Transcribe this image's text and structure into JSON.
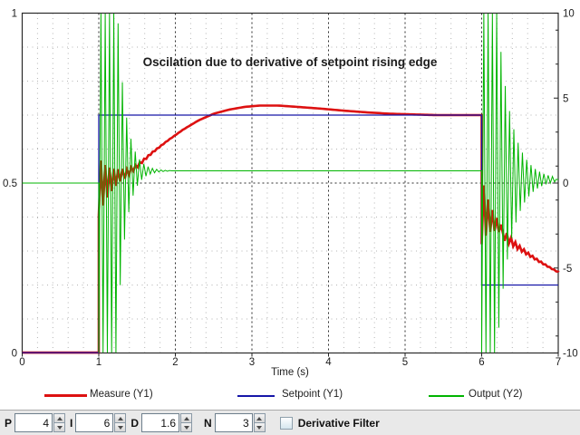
{
  "chart_data": {
    "type": "line",
    "title": "Oscilation due to derivative of setpoint rising edge",
    "xlabel": "Time (s)",
    "x_range": [
      0,
      7
    ],
    "x_ticks": [
      0,
      1,
      2,
      3,
      4,
      5,
      6,
      7
    ],
    "y_left": {
      "range": [
        0,
        1
      ],
      "ticks": [
        0,
        0.5,
        1
      ],
      "tick_labels": [
        "0",
        "0.5",
        "1"
      ]
    },
    "y_right": {
      "range": [
        -10,
        10
      ],
      "ticks": [
        -10,
        -5,
        0,
        5,
        10
      ],
      "tick_labels": [
        "-10",
        "-5",
        "0",
        "5",
        "10"
      ],
      "minor_ticks": [
        -9,
        -7,
        -3,
        -1,
        1,
        3,
        7,
        9
      ]
    },
    "grid": {
      "x_minor_step": 0.2,
      "y_left_minor_step": 0.1,
      "dark_x_lines": [
        1,
        2,
        3,
        4,
        5,
        6
      ],
      "dark_y_left_line": 0.5,
      "light_color": "#b3b3b3",
      "dark_color": "#2e2e2e"
    },
    "legend_position": "bottom",
    "series": [
      {
        "name": "Measure (Y1)",
        "axis": "left",
        "color": "#dd1111",
        "width": 2.6,
        "segments": [
          {
            "type": "flat",
            "t0": 0,
            "t1": 1,
            "v": 0
          },
          {
            "type": "burst",
            "t0": 1,
            "t1": 1.34,
            "center0": 0.49,
            "center1": 0.53,
            "rise": 0.34,
            "amp0": 0.085,
            "amp1": 0.085,
            "full_until": 1,
            "decay": 0.18,
            "halfperiod": 0.028
          },
          {
            "type": "smooth",
            "ripple_amp": 0.012,
            "ripple_decay": 0.2,
            "halfperiod": 0.028,
            "points": [
              [
                1.34,
                0.525
              ],
              [
                1.5,
                0.55
              ],
              [
                1.7,
                0.59
              ],
              [
                1.9,
                0.625
              ],
              [
                2.1,
                0.657
              ],
              [
                2.3,
                0.684
              ],
              [
                2.5,
                0.704
              ],
              [
                2.7,
                0.716
              ],
              [
                2.9,
                0.724
              ],
              [
                3.1,
                0.728
              ],
              [
                3.35,
                0.728
              ],
              [
                3.6,
                0.724
              ],
              [
                3.9,
                0.719
              ],
              [
                4.2,
                0.713
              ],
              [
                4.5,
                0.708
              ],
              [
                4.8,
                0.704
              ],
              [
                5.1,
                0.702
              ],
              [
                5.4,
                0.7
              ],
              [
                6,
                0.7
              ]
            ]
          },
          {
            "type": "burst",
            "t0": 6,
            "t1": 6.3,
            "center0": 0.42,
            "center1": 0.355,
            "rise": 0.3,
            "amp0": 0.1,
            "amp1": 0.1,
            "full_until": 6,
            "decay": 0.12,
            "halfperiod": 0.028
          },
          {
            "type": "smooth",
            "ripple_amp": 0.015,
            "ripple_decay": 0.25,
            "halfperiod": 0.028,
            "points": [
              [
                6.3,
                0.345
              ],
              [
                6.45,
                0.316
              ],
              [
                6.6,
                0.292
              ],
              [
                6.75,
                0.27
              ],
              [
                6.9,
                0.25
              ],
              [
                7,
                0.238
              ]
            ]
          }
        ]
      },
      {
        "name": "Setpoint (Y1)",
        "axis": "left",
        "color": "#1616a8",
        "width": 1.3,
        "segments": [
          {
            "type": "points",
            "points": [
              [
                0,
                0
              ],
              [
                1,
                0
              ],
              [
                1,
                0.7
              ],
              [
                6,
                0.7
              ],
              [
                6,
                0.2
              ],
              [
                7,
                0.2
              ]
            ]
          }
        ]
      },
      {
        "name": "Output (Y2)",
        "axis": "right",
        "color": "#00b400",
        "width": 1,
        "segments": [
          {
            "type": "flat",
            "t0": 0,
            "t1": 1,
            "v": 0
          },
          {
            "type": "burst",
            "t0": 1,
            "t1": 1.95,
            "center0": 0,
            "center1": 0.72,
            "rise": 0.25,
            "amp0": 26,
            "amp1": 10.6,
            "full_until": 1.23,
            "decay": 0.11,
            "halfperiod": 0.028
          },
          {
            "type": "flat",
            "t0": 1.95,
            "t1": 6,
            "v": 0.72
          },
          {
            "type": "burst",
            "t0": 6,
            "t1": 6.97,
            "center0": 0.72,
            "center1": 0.21,
            "rise": 0.25,
            "amp0": 26,
            "amp1": 10.6,
            "full_until": 6.19,
            "decay": 0.18,
            "halfperiod": 0.028
          },
          {
            "type": "flat",
            "t0": 6.97,
            "t1": 7,
            "v": 0.21
          }
        ]
      }
    ]
  },
  "legend": {
    "items": [
      "Measure (Y1)",
      "Setpoint (Y1)",
      "Output (Y2)"
    ]
  },
  "controls": {
    "fields": [
      {
        "label": "P",
        "value": "4"
      },
      {
        "label": "I",
        "value": "6"
      },
      {
        "label": "D",
        "value": "1.6"
      },
      {
        "label": "N",
        "value": "3"
      }
    ],
    "filter_label": "Derivative Filter",
    "filter_checked": false
  }
}
